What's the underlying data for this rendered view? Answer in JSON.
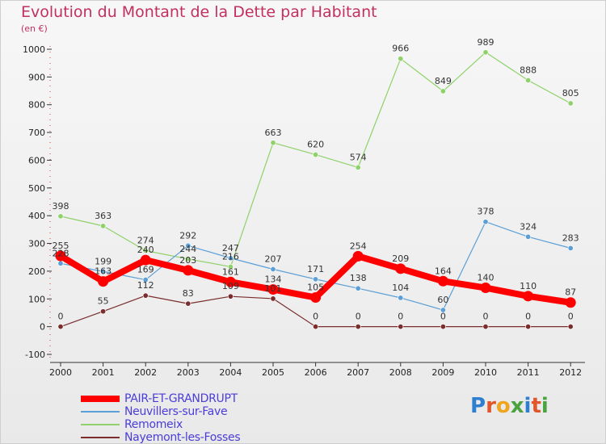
{
  "title": "Evolution du Montant de la Dette par Habitant",
  "unit_label": "(en €)",
  "logo_text": "Proxiti",
  "chart_data": {
    "type": "line",
    "title": "Evolution du Montant de la Dette par Habitant",
    "ylabel": "(en €)",
    "xlabel": "",
    "x": [
      "2000",
      "2001",
      "2002",
      "2003",
      "2004",
      "2005",
      "2006",
      "2007",
      "2008",
      "2009",
      "2010",
      "2011",
      "2012"
    ],
    "ylim": [
      -100,
      1000
    ],
    "yticks": [
      "-100",
      "0",
      "100",
      "200",
      "300",
      "400",
      "500",
      "600",
      "700",
      "800",
      "900",
      "1000"
    ],
    "grid": false,
    "legend_position": "bottom-left",
    "series": [
      {
        "name": "Remomeix",
        "color": "#8fd16a",
        "width": 1.2,
        "marker": 3.2,
        "values": [
          398,
          363,
          274,
          244,
          216,
          663,
          620,
          574,
          966,
          849,
          989,
          888,
          805
        ]
      },
      {
        "name": "Neuvillers-sur-Fave",
        "color": "#5b9fd6",
        "width": 1.2,
        "marker": 3.2,
        "values": [
          228,
          199,
          169,
          292,
          247,
          207,
          171,
          138,
          104,
          60,
          378,
          324,
          283
        ]
      },
      {
        "name": "Nayemont-les-Fosses",
        "color": "#7a2d2d",
        "width": 1.2,
        "marker": 3.2,
        "values": [
          0,
          55,
          112,
          83,
          109,
          101,
          0,
          0,
          0,
          0,
          0,
          0,
          0
        ]
      },
      {
        "name": "PAIR-ET-GRANDRUPT",
        "color": "#ff0000",
        "width": 8,
        "marker": 6.5,
        "values": [
          255,
          163,
          240,
          203,
          161,
          134,
          105,
          254,
          209,
          164,
          140,
          110,
          87
        ]
      }
    ]
  },
  "legend": [
    {
      "name": "PAIR-ET-GRANDRUPT",
      "color": "#ff0000",
      "thickness": 8
    },
    {
      "name": "Neuvillers-sur-Fave",
      "color": "#5b9fd6",
      "thickness": 2
    },
    {
      "name": "Remomeix",
      "color": "#8fd16a",
      "thickness": 2
    },
    {
      "name": "Nayemont-les-Fosses",
      "color": "#7a2d2d",
      "thickness": 2
    }
  ]
}
